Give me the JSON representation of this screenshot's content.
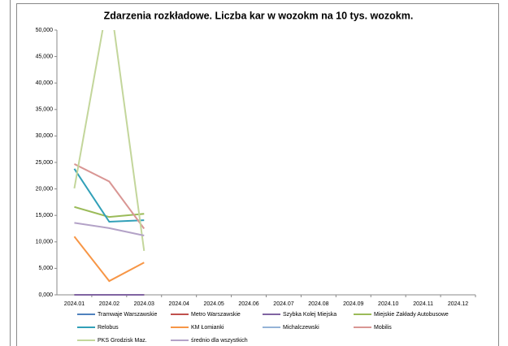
{
  "chart_data": {
    "type": "line",
    "title": "Zdarzenia rozkładowe. Liczba kar w wozokm na 10 tys. wozokm.",
    "categories": [
      "2024.01",
      "2024.02",
      "2024.03",
      "2024.04",
      "2024.05",
      "2024.06",
      "2024.07",
      "2024.08",
      "2024.09",
      "2024.10",
      "2024.11",
      "2024.12"
    ],
    "ylim": [
      0,
      50000
    ],
    "yticks": [
      {
        "value": 0,
        "label": "0,000"
      },
      {
        "value": 5000,
        "label": "5,000"
      },
      {
        "value": 10000,
        "label": "10,000"
      },
      {
        "value": 15000,
        "label": "15,000"
      },
      {
        "value": 20000,
        "label": "20,000"
      },
      {
        "value": 25000,
        "label": "25,000"
      },
      {
        "value": 30000,
        "label": "30,000"
      },
      {
        "value": 35000,
        "label": "35,000"
      },
      {
        "value": 40000,
        "label": "40,000"
      },
      {
        "value": 45000,
        "label": "45,000"
      },
      {
        "value": 50000,
        "label": "50,000"
      }
    ],
    "legend": "bottom",
    "series": [
      {
        "name": "Tramwaje Warszawskie",
        "color": "#4f81bd",
        "values": [
          0,
          0,
          0,
          null,
          null,
          null,
          null,
          null,
          null,
          null,
          null,
          null
        ]
      },
      {
        "name": "Metro Warszawskie",
        "color": "#c0504d",
        "values": [
          0,
          0,
          0,
          null,
          null,
          null,
          null,
          null,
          null,
          null,
          null,
          null
        ]
      },
      {
        "name": "Szybka Kolej Miejska",
        "color": "#8064a2",
        "values": [
          0,
          0,
          0,
          null,
          null,
          null,
          null,
          null,
          null,
          null,
          null,
          null
        ]
      },
      {
        "name": "Miejskie Zakłady Autobusowe",
        "color": "#9bbb59",
        "values": [
          16600,
          14700,
          15300,
          null,
          null,
          null,
          null,
          null,
          null,
          null,
          null,
          null
        ]
      },
      {
        "name": "Relobus",
        "color": "#31a0b8",
        "values": [
          23800,
          13800,
          14100,
          null,
          null,
          null,
          null,
          null,
          null,
          null,
          null,
          null
        ]
      },
      {
        "name": "KM Łomianki",
        "color": "#f79646",
        "values": [
          11000,
          2600,
          6100,
          null,
          null,
          null,
          null,
          null,
          null,
          null,
          null,
          null
        ]
      },
      {
        "name": "Michalczewski",
        "color": "#95b3d7",
        "values": [
          null,
          null,
          null,
          null,
          null,
          null,
          null,
          null,
          null,
          null,
          null,
          null
        ]
      },
      {
        "name": "Mobilis",
        "color": "#d99694",
        "values": [
          24700,
          21400,
          12500,
          null,
          null,
          null,
          null,
          null,
          null,
          null,
          null,
          null
        ]
      },
      {
        "name": "PKS Grodzisk Maz.",
        "color": "#c3d69b",
        "values": [
          20100,
          57000,
          8300,
          null,
          null,
          null,
          null,
          null,
          null,
          null,
          null,
          null
        ]
      },
      {
        "name": "średnio dla wszystkich",
        "color": "#b3a2c7",
        "values": [
          13600,
          12600,
          11200,
          null,
          null,
          null,
          null,
          null,
          null,
          null,
          null,
          null
        ]
      }
    ]
  }
}
